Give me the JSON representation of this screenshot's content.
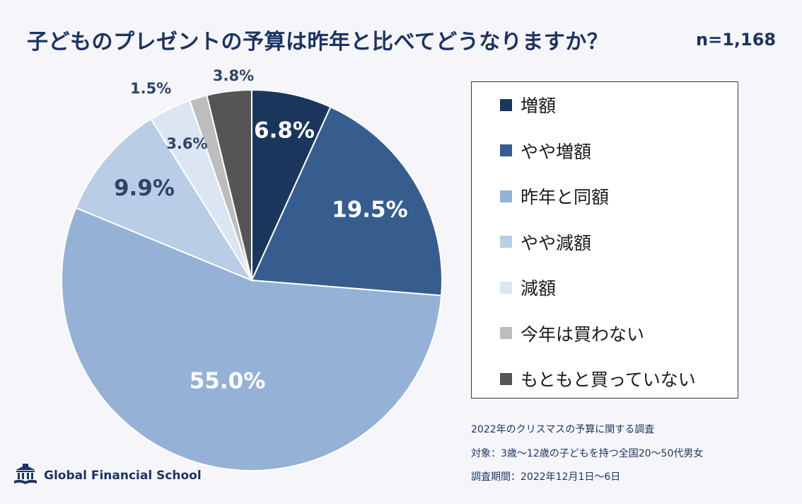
{
  "header": {
    "title": "子どものプレゼントの予算は昨年と比べてどうなりますか？",
    "sample_size": "n=1,168"
  },
  "chart_data": {
    "type": "pie",
    "title": "子どものプレゼントの予算は昨年と比べてどうなりますか？",
    "slices": [
      {
        "label": "増額",
        "value": 6.8,
        "display": "6.8%",
        "color": "#1b365d",
        "label_color": "#ffffff",
        "label_placement": "inside"
      },
      {
        "label": "やや増額",
        "value": 19.5,
        "display": "19.5%",
        "color": "#365d8e",
        "label_color": "#ffffff",
        "label_placement": "inside"
      },
      {
        "label": "昨年と同額",
        "value": 55.0,
        "display": "55.0%",
        "color": "#95b2d6",
        "label_color": "#ffffff",
        "label_placement": "inside"
      },
      {
        "label": "やや減額",
        "value": 9.9,
        "display": "9.9%",
        "color": "#b9cde6",
        "label_color": "#2e4468",
        "label_placement": "inside"
      },
      {
        "label": "減額",
        "value": 3.6,
        "display": "3.6%",
        "color": "#dce6f3",
        "label_color": "#2e4468",
        "label_placement": "inside"
      },
      {
        "label": "今年は買わない",
        "value": 1.5,
        "display": "1.5%",
        "color": "#bdbdbd",
        "label_color": "#2e4468",
        "label_placement": "outside"
      },
      {
        "label": "もともと買っていない",
        "value": 3.8,
        "display": "3.8%",
        "color": "#555555",
        "label_color": "#2e4468",
        "label_placement": "outside"
      }
    ],
    "start_angle": "12 o'clock",
    "direction": "clockwise",
    "legend_position": "right"
  },
  "notes": {
    "survey_name": "2022年のクリスマスの予算に関する調査",
    "target": "対象：3歳～12歳の子どもを持つ全国20～50代男女",
    "period": "調査期間：2022年12月1日～6日"
  },
  "logo": {
    "text": "Global Financial School",
    "icon": "school-building-icon"
  }
}
